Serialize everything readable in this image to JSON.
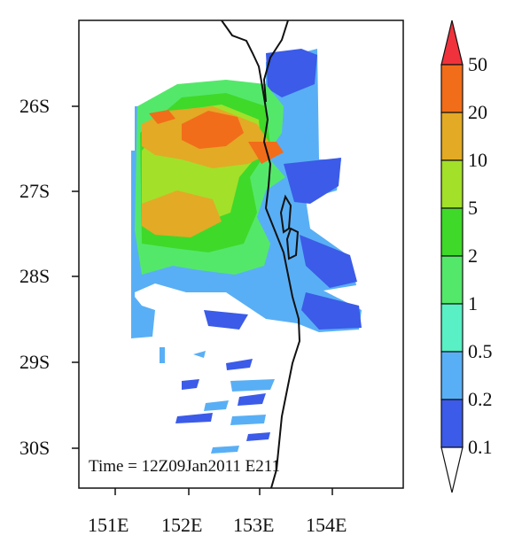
{
  "map": {
    "time_label": "Time = 12Z09Jan2011 E211",
    "lat_labels": [
      "26S",
      "27S",
      "28S",
      "29S",
      "30S"
    ],
    "lon_labels": [
      "151E",
      "152E",
      "153E",
      "154E"
    ]
  },
  "colorbar": {
    "labels": [
      "50",
      "20",
      "10",
      "5",
      "2",
      "1",
      "0.5",
      "0.2",
      "0.1"
    ],
    "colors": [
      "#f0323c",
      "#f26d1a",
      "#e3aa25",
      "#a3e02a",
      "#3fd92a",
      "#54e86a",
      "#58f0c4",
      "#59aff5",
      "#3b5be8",
      "#ffffff"
    ]
  }
}
